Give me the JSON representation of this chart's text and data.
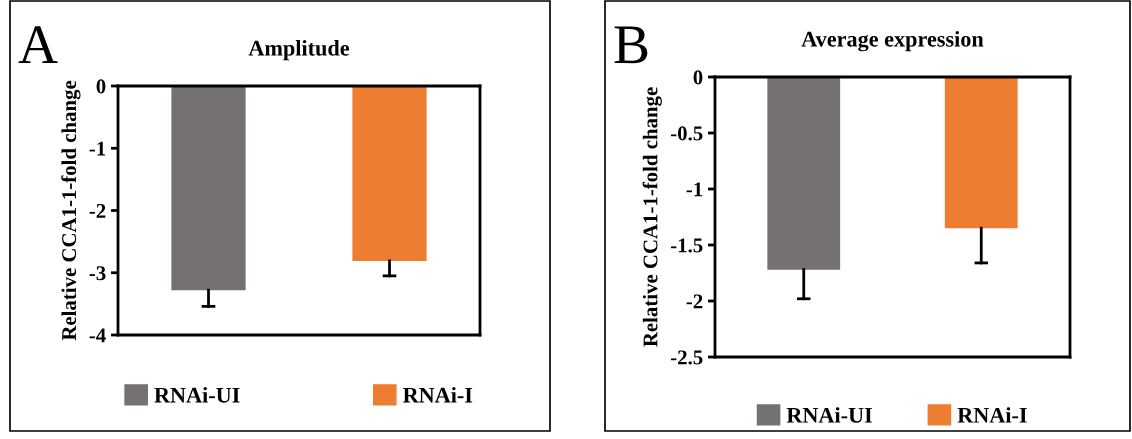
{
  "chart_data": [
    {
      "type": "bar",
      "title": "Amplitude",
      "ylabel": "Relative CCA1-1-fold change",
      "annotations": [
        "A"
      ],
      "categories": [
        null,
        null
      ],
      "series": [
        {
          "name": "RNAi-UI",
          "color": "#767171",
          "values": [
            -3.28,
            null
          ],
          "errors": [
            [
              -3.54,
              -3.28
            ],
            null
          ]
        },
        {
          "name": "RNAi-I",
          "color": "#ed7d31",
          "values": [
            null,
            -2.81
          ],
          "errors": [
            null,
            [
              -3.05,
              -2.81
            ]
          ]
        }
      ],
      "ylim": [
        -4,
        0
      ],
      "yticks": [
        {
          "value": -4,
          "label": "-4"
        },
        {
          "value": -3,
          "label": "-3"
        },
        {
          "value": -2,
          "label": "-2"
        },
        {
          "value": -1,
          "label": "-1"
        },
        0
      ],
      "grid": false,
      "legend": "bottom"
    },
    {
      "type": "bar",
      "title": "Average expression",
      "ylabel": "Relative CCA1-1-fold change",
      "annotations": [
        "B"
      ],
      "categories": [
        null,
        null
      ],
      "series": [
        {
          "name": "RNAi-UI",
          "color": "#767171",
          "values": [
            -1.72,
            null
          ],
          "errors": [
            [
              -1.98,
              -1.72
            ],
            null
          ]
        },
        {
          "name": "RNAi-I",
          "color": "#ed7d31",
          "values": [
            null,
            -1.35
          ],
          "errors": [
            null,
            [
              -1.66,
              -1.35
            ]
          ]
        }
      ],
      "ylim": [
        -2.5,
        0
      ],
      "yticks": [
        {
          "value": -2.5,
          "label": "-2.5"
        },
        {
          "value": -2,
          "label": "-2"
        },
        {
          "value": -1.5,
          "label": "-1.5"
        },
        {
          "value": -1,
          "label": "-1"
        },
        {
          "value": -0.5,
          "label": "-0.5"
        },
        0
      ],
      "grid": false,
      "legend": "bottom"
    }
  ]
}
